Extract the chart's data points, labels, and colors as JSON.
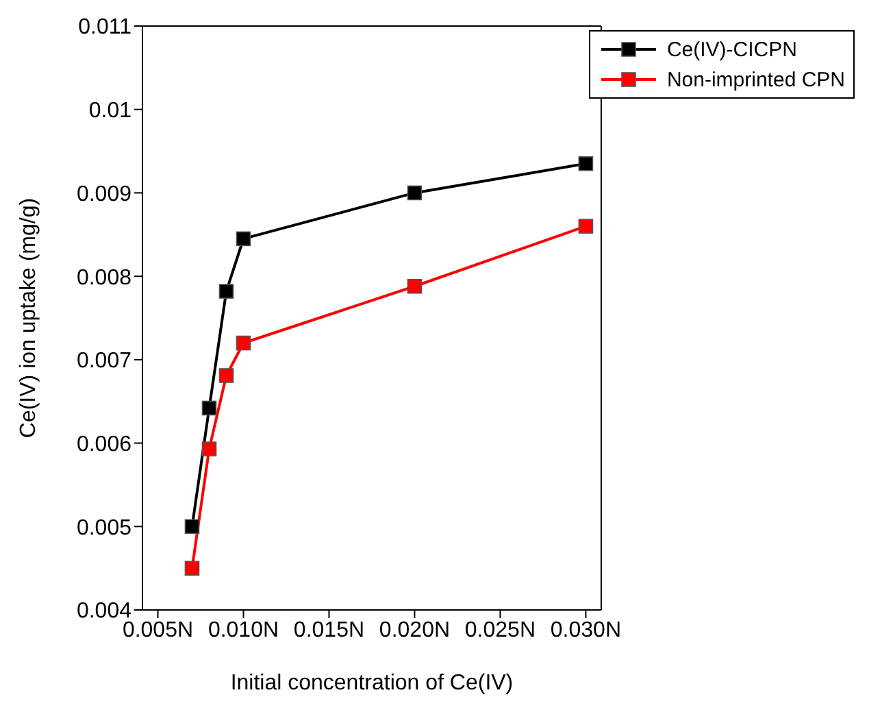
{
  "chart_data": {
    "type": "line",
    "xlabel": "Initial concentration of Ce(IV)",
    "ylabel": "Ce(IV) ion uptake (mg/g)",
    "x": [
      0.007,
      0.008,
      0.009,
      0.01,
      0.02,
      0.03
    ],
    "series": [
      {
        "name": "Ce(IV)-CICPN",
        "color": "#000000",
        "values": [
          0.005,
          0.00642,
          0.00782,
          0.00845,
          0.009,
          0.00935
        ]
      },
      {
        "name": "Non-imprinted CPN",
        "color": "#ff0000",
        "values": [
          0.0045,
          0.00593,
          0.00681,
          0.0072,
          0.00788,
          0.0086
        ]
      }
    ],
    "xlim": [
      0.0041,
      0.0309
    ],
    "xticks": [
      {
        "value": 0.005,
        "label": "0.005N"
      },
      {
        "value": 0.01,
        "label": "0.010N"
      },
      {
        "value": 0.015,
        "label": "0.015N"
      },
      {
        "value": 0.02,
        "label": "0.020N"
      },
      {
        "value": 0.025,
        "label": "0.025N"
      },
      {
        "value": 0.03,
        "label": "0.030N"
      }
    ],
    "ylim": [
      0.004,
      0.011
    ],
    "yticks": [
      0.004,
      0.005,
      0.006,
      0.007,
      0.008,
      0.009,
      0.01,
      0.011
    ],
    "grid": false,
    "legend": "top right",
    "marker": "square",
    "line_style": "solid"
  }
}
